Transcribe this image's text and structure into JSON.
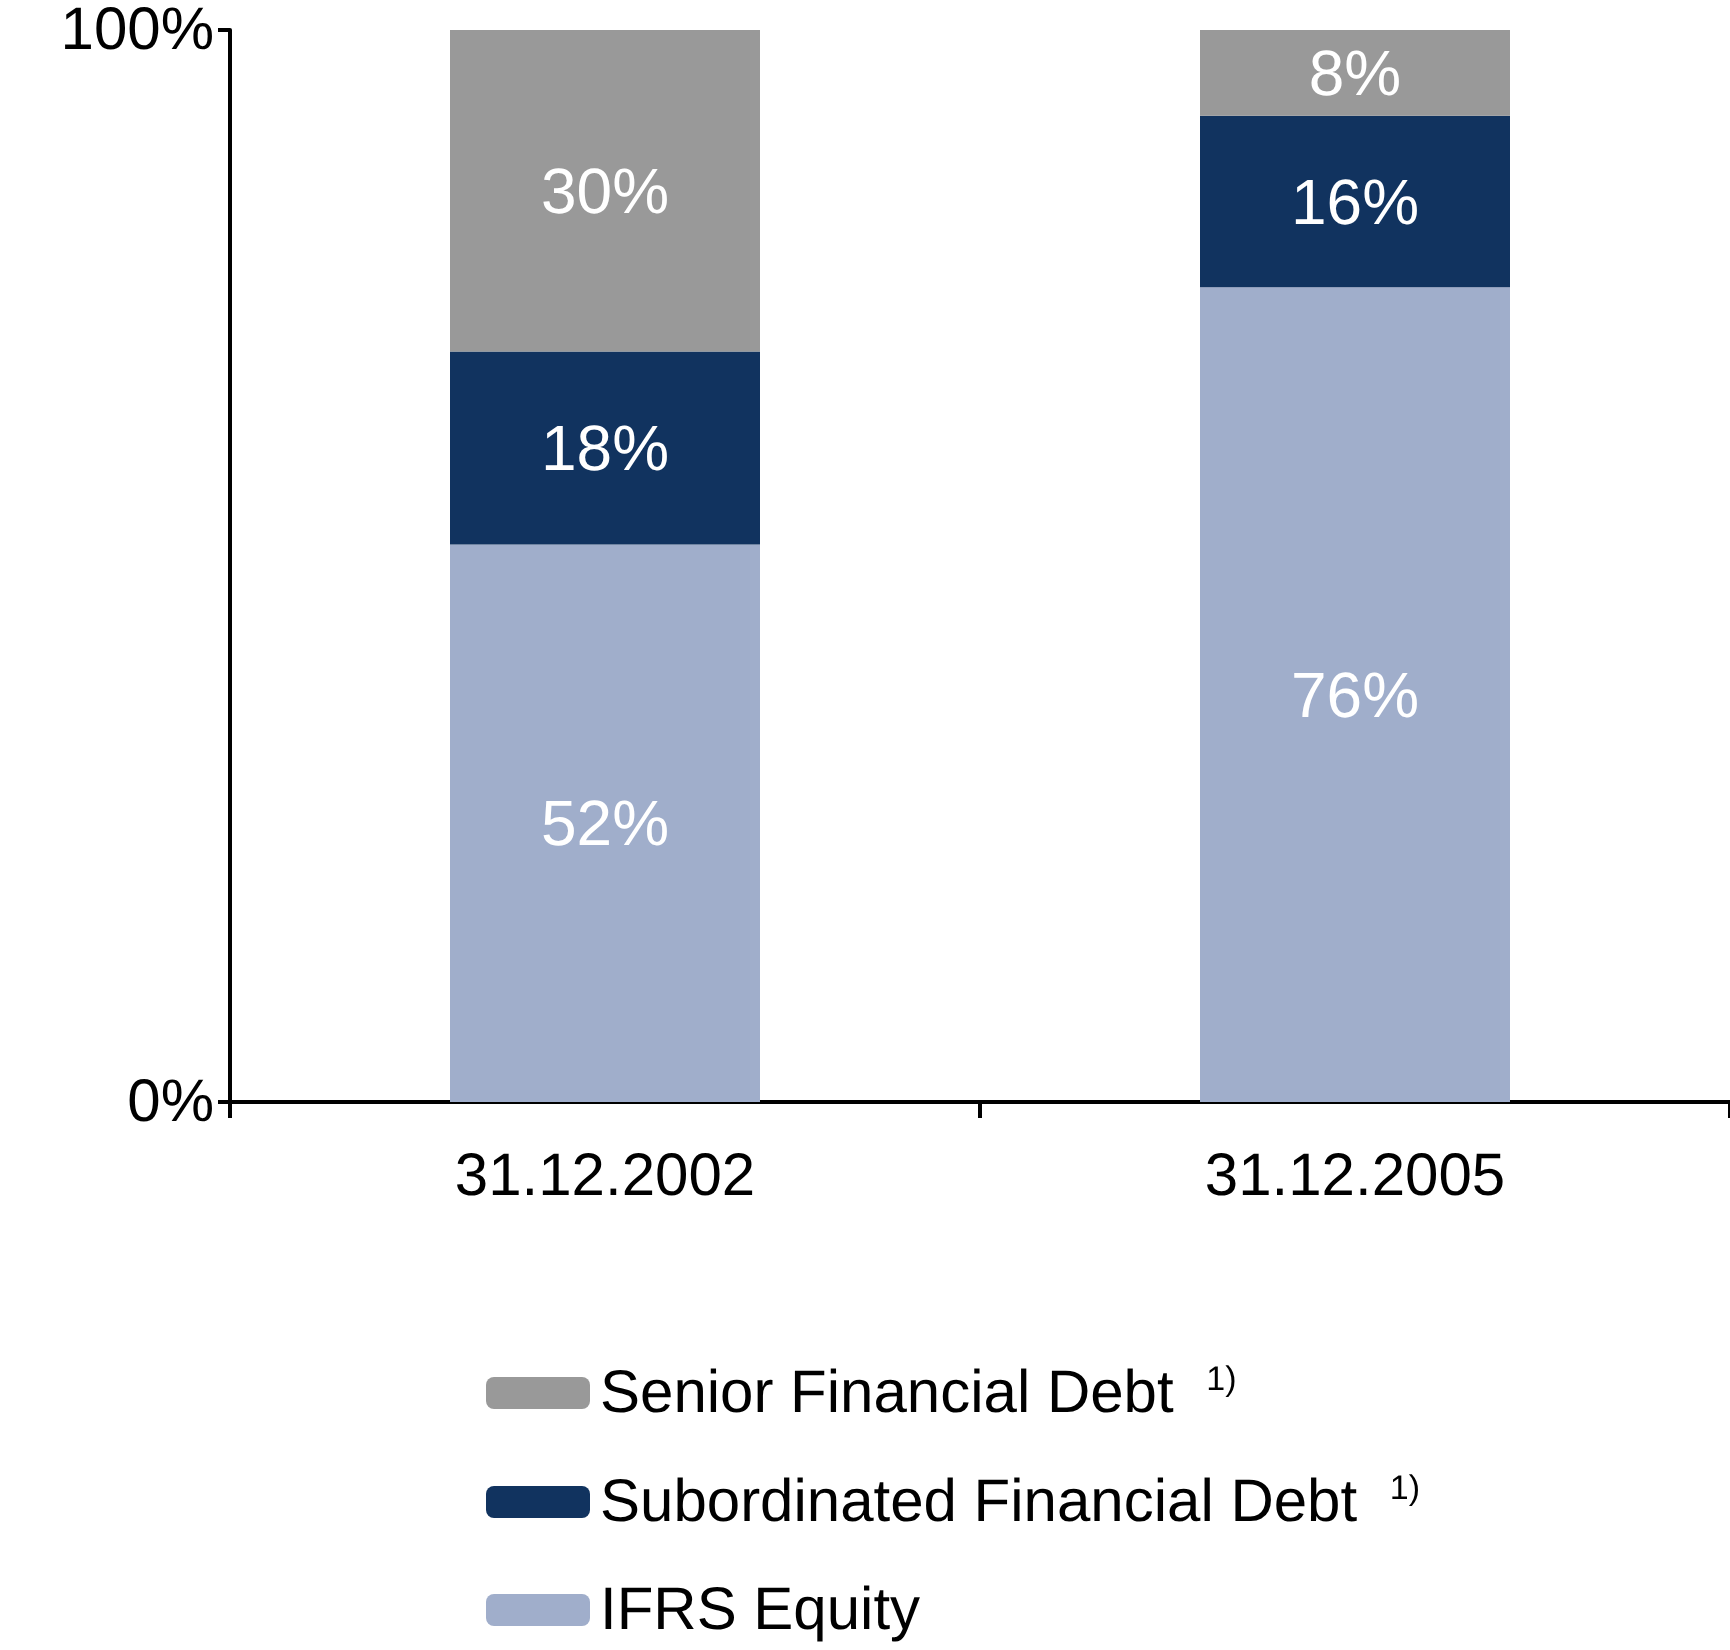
{
  "chart_data": {
    "type": "bar",
    "stacked": true,
    "categories": [
      "31.12.2002",
      "31.12.2005"
    ],
    "series": [
      {
        "name": "IFRS Equity",
        "color": "#a0aecb",
        "values": [
          52,
          76
        ],
        "value_labels": [
          "52%",
          "76%"
        ]
      },
      {
        "name": "Subordinated Financial Debt $^{1)}$",
        "color": "#11335f",
        "values": [
          18,
          16
        ],
        "value_labels": [
          "18%",
          "16%"
        ]
      },
      {
        "name": "Senior Financial Debt $^{1)}$",
        "color": "#999999",
        "values": [
          30,
          8
        ],
        "value_labels": [
          "30%",
          "8%"
        ]
      }
    ],
    "ylim": [
      0,
      100
    ],
    "yticks": [
      {
        "value": 0,
        "label": "0%"
      },
      {
        "value": 100,
        "label": "100%"
      }
    ],
    "grid": false,
    "legend": "bottom"
  }
}
